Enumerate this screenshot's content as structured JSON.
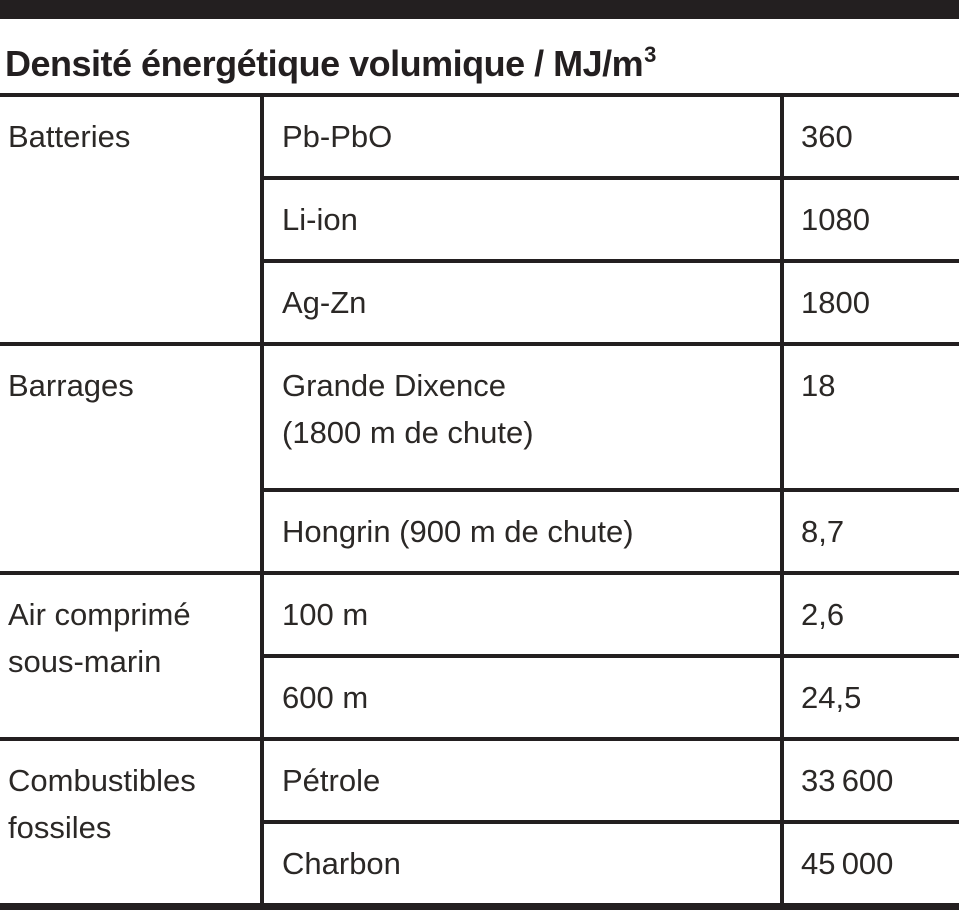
{
  "page": {
    "ink_color": "#231f20",
    "text_color": "#2b2826",
    "background_color": "#ffffff"
  },
  "header": {
    "title_main": "Densité énergétique volumique / MJ/m",
    "title_exponent": "3"
  },
  "table": {
    "groups": [
      {
        "category": "Batteries",
        "rows": [
          {
            "item": "Pb-PbO",
            "value": "360"
          },
          {
            "item": "Li-ion",
            "value": "1080"
          },
          {
            "item": "Ag-Zn",
            "value": "1800"
          }
        ]
      },
      {
        "category": "Barrages",
        "rows": [
          {
            "item": "Grande Dixence\n(1800 m de chute)",
            "value": "18"
          },
          {
            "item": "Hongrin (900 m de chute)",
            "value": "8,7"
          }
        ]
      },
      {
        "category": "Air comprimé\nsous-marin",
        "rows": [
          {
            "item": "100 m",
            "value": "2,6"
          },
          {
            "item": "600 m",
            "value": "24,5"
          }
        ]
      },
      {
        "category": "Combustibles\nfossiles",
        "rows": [
          {
            "item": "Pétrole",
            "value": "33 600"
          },
          {
            "item": "Charbon",
            "value": "45 000"
          }
        ]
      }
    ]
  },
  "chart_data": {
    "type": "table",
    "title": "Densité énergétique volumique / MJ/m³",
    "unit": "MJ/m³",
    "rows": [
      [
        "Batteries",
        "Pb-PbO",
        360
      ],
      [
        "Batteries",
        "Li-ion",
        1080
      ],
      [
        "Batteries",
        "Ag-Zn",
        1800
      ],
      [
        "Barrages",
        "Grande Dixence (1800 m de chute)",
        18
      ],
      [
        "Barrages",
        "Hongrin (900 m de chute)",
        8.7
      ],
      [
        "Air comprimé sous-marin",
        "100 m",
        2.6
      ],
      [
        "Air comprimé sous-marin",
        "600 m",
        24.5
      ],
      [
        "Combustibles fossiles",
        "Pétrole",
        33600
      ],
      [
        "Combustibles fossiles",
        "Charbon",
        45000
      ]
    ]
  }
}
